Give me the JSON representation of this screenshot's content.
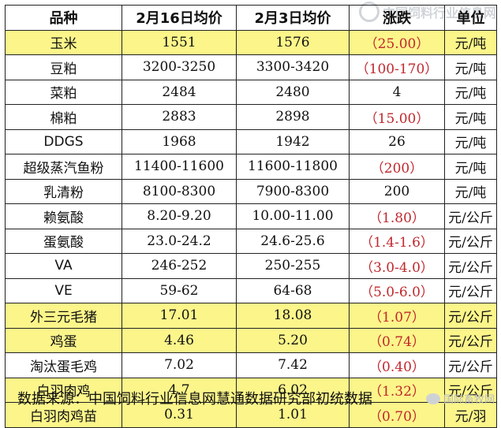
{
  "table": {
    "headers": [
      "品种",
      "2月16日均价",
      "2月3日均价",
      "涨跌",
      "单位"
    ],
    "rows": [
      {
        "name": "玉米",
        "price_feb16": "1551",
        "price_feb3": "1576",
        "change": "（25.00）",
        "unit": "元/吨",
        "highlight": true,
        "negative": true
      },
      {
        "name": "豆粕",
        "price_feb16": "3200-3250",
        "price_feb3": "3300-3420",
        "change": "（100-170）",
        "unit": "元/吨",
        "highlight": false,
        "negative": true
      },
      {
        "name": "菜粕",
        "price_feb16": "2484",
        "price_feb3": "2480",
        "change": "4",
        "unit": "元/吨",
        "highlight": false,
        "negative": false
      },
      {
        "name": "棉粕",
        "price_feb16": "2883",
        "price_feb3": "2898",
        "change": "（15.00）",
        "unit": "元/吨",
        "highlight": false,
        "negative": true
      },
      {
        "name": "DDGS",
        "price_feb16": "1968",
        "price_feb3": "1942",
        "change": "26",
        "unit": "元/吨",
        "highlight": false,
        "negative": false
      },
      {
        "name": "超级蒸汽鱼粉",
        "price_feb16": "11400-11600",
        "price_feb3": "11600-11800",
        "change": "（200）",
        "unit": "元/吨",
        "highlight": false,
        "negative": true
      },
      {
        "name": "乳清粉",
        "price_feb16": "8100-8300",
        "price_feb3": "7900-8300",
        "change": "200",
        "unit": "元/吨",
        "highlight": false,
        "negative": false
      },
      {
        "name": "赖氨酸",
        "price_feb16": "8.20-9.20",
        "price_feb3": "10.00-11.00",
        "change": "（1.80）",
        "unit": "元/公斤",
        "highlight": false,
        "negative": true
      },
      {
        "name": "蛋氨酸",
        "price_feb16": "23.0-24.2",
        "price_feb3": "24.6-25.6",
        "change": "（1.4-1.6）",
        "unit": "元/公斤",
        "highlight": false,
        "negative": true
      },
      {
        "name": "VA",
        "price_feb16": "246-252",
        "price_feb3": "250-255",
        "change": "（3.0-4.0）",
        "unit": "元/公斤",
        "highlight": false,
        "negative": true
      },
      {
        "name": "VE",
        "price_feb16": "59-62",
        "price_feb3": "64-68",
        "change": "（5.0-6.0）",
        "unit": "元/公斤",
        "highlight": false,
        "negative": true
      },
      {
        "name": "外三元毛猪",
        "price_feb16": "17.01",
        "price_feb3": "18.08",
        "change": "（1.07）",
        "unit": "元/公斤",
        "highlight": true,
        "negative": true
      },
      {
        "name": "鸡蛋",
        "price_feb16": "4.46",
        "price_feb3": "5.20",
        "change": "（0.74）",
        "unit": "元/公斤",
        "highlight": true,
        "negative": true
      },
      {
        "name": "淘汰蛋毛鸡",
        "price_feb16": "7.02",
        "price_feb3": "7.42",
        "change": "（0.40）",
        "unit": "元/公斤",
        "highlight": false,
        "negative": true
      },
      {
        "name": "白羽肉鸡",
        "price_feb16": "4.7",
        "price_feb3": "6.02",
        "change": "（1.32）",
        "unit": "元/公斤",
        "highlight": true,
        "negative": true
      },
      {
        "name": "白羽肉鸡苗",
        "price_feb16": "0.31",
        "price_feb3": "1.01",
        "change": "（0.70）",
        "unit": "元/羽",
        "highlight": true,
        "negative": true
      }
    ]
  },
  "source_note": "数据来源：中国饲料行业信息网慧通数据研究部初统数据",
  "watermark_top": "中国饲料行业信息网",
  "watermark_bottom": "国际畜牧网",
  "colors": {
    "highlight": "#fbf58a",
    "negative": "#c0272d"
  }
}
